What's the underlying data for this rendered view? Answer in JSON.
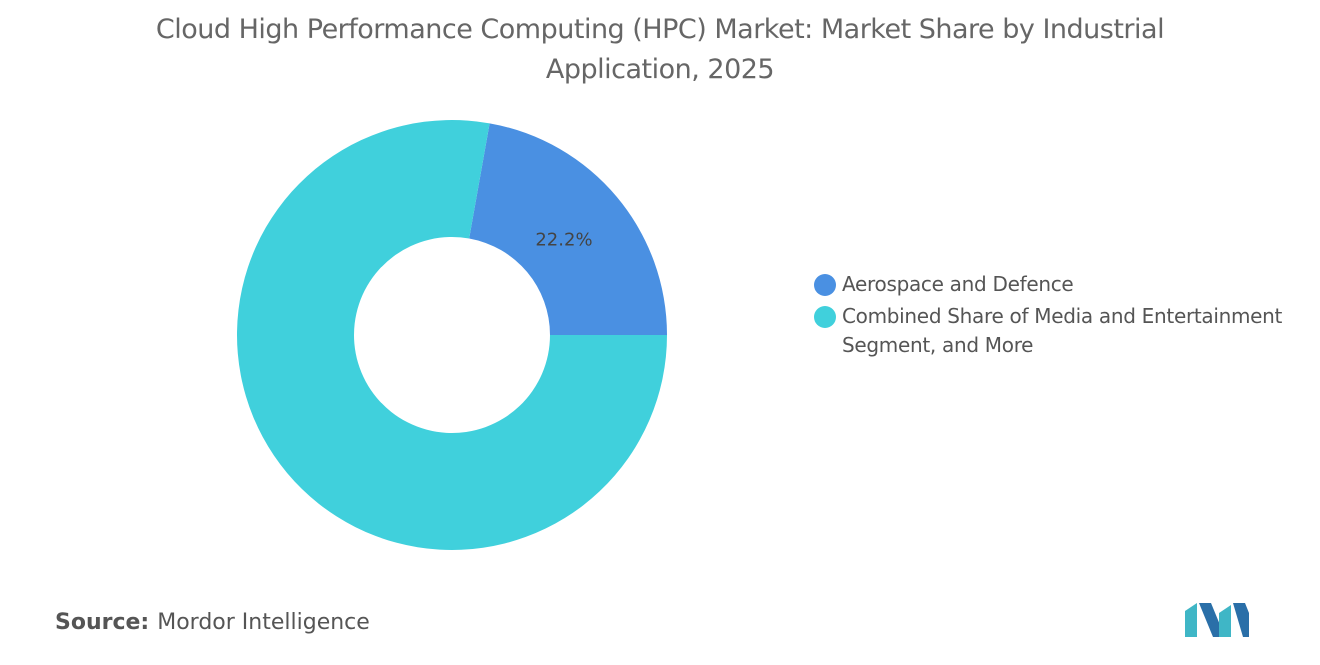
{
  "chart_data": {
    "type": "donut",
    "title": "Cloud High Performance Computing (HPC) Market: Market Share by Industrial Application, 2025",
    "categories": [
      "Aerospace and Defence",
      "Combined Share of Media and Entertainment Segment, and More"
    ],
    "values": [
      22.2,
      77.8
    ],
    "value_labels": [
      "22.2%",
      null
    ],
    "colors": [
      "#4a90e2",
      "#40d0dc"
    ],
    "legend": "right",
    "source_label": "Source:",
    "source": "Mordor Intelligence"
  }
}
